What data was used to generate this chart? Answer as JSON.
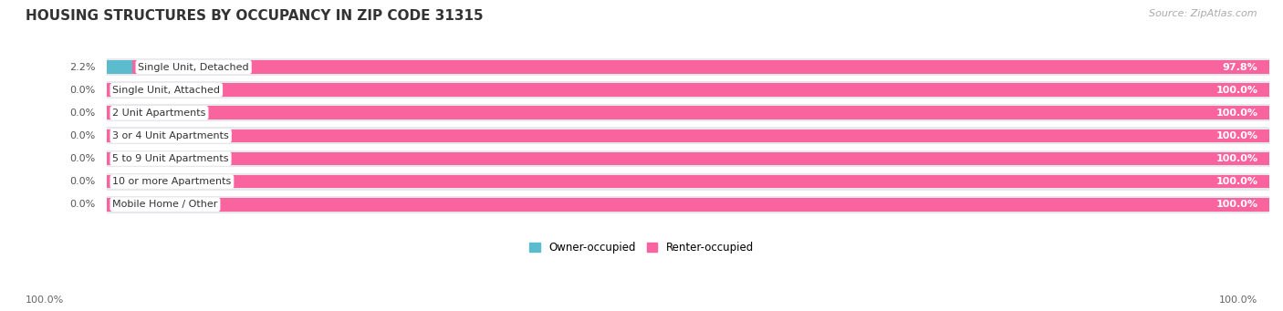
{
  "title": "HOUSING STRUCTURES BY OCCUPANCY IN ZIP CODE 31315",
  "source": "Source: ZipAtlas.com",
  "categories": [
    "Single Unit, Detached",
    "Single Unit, Attached",
    "2 Unit Apartments",
    "3 or 4 Unit Apartments",
    "5 to 9 Unit Apartments",
    "10 or more Apartments",
    "Mobile Home / Other"
  ],
  "owner_pct": [
    2.2,
    0.0,
    0.0,
    0.0,
    0.0,
    0.0,
    0.0
  ],
  "renter_pct": [
    97.8,
    100.0,
    100.0,
    100.0,
    100.0,
    100.0,
    100.0
  ],
  "owner_label": [
    "2.2%",
    "0.0%",
    "0.0%",
    "0.0%",
    "0.0%",
    "0.0%",
    "0.0%"
  ],
  "renter_label": [
    "97.8%",
    "100.0%",
    "100.0%",
    "100.0%",
    "100.0%",
    "100.0%",
    "100.0%"
  ],
  "left_axis_label": "100.0%",
  "right_axis_label": "100.0%",
  "owner_color": "#5bbccd",
  "renter_color": "#f9649f",
  "background_color": "#ffffff",
  "bar_bg_color": "#e8e8ec",
  "title_fontsize": 11,
  "source_fontsize": 8,
  "label_fontsize": 8,
  "cat_fontsize": 8,
  "legend_owner": "Owner-occupied",
  "legend_renter": "Renter-occupied"
}
